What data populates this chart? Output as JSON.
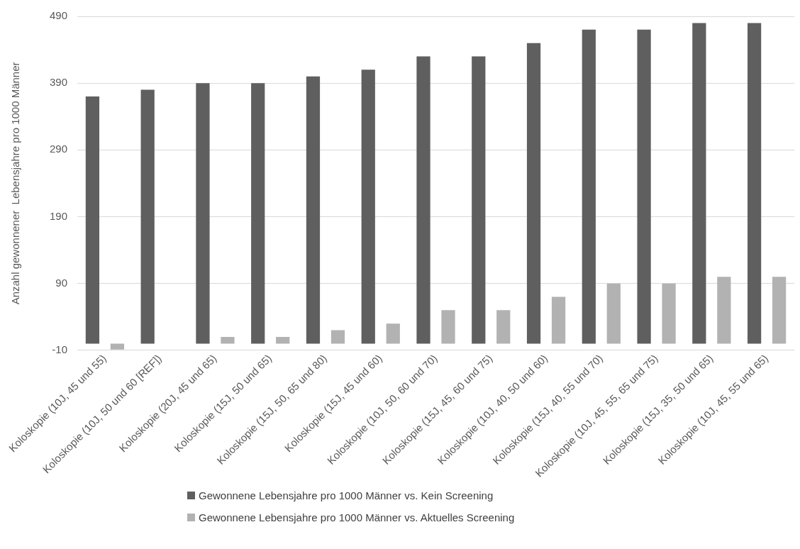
{
  "chart_data": {
    "type": "bar",
    "ylabel": "Anzahl gewonnener  Lebensjahre pro 1000 Männer",
    "categories": [
      "Koloskopie (10J, 45 und 55)",
      "Koloskopie (10J, 50 und 60 [REF])",
      "Koloskopie (20J, 45 und 65)",
      "Koloskopie (15J, 50 und 65)",
      "Koloskopie (15J, 50, 65 und 80)",
      "Koloskopie (15J, 45 und 60)",
      "Koloskopie (10J, 50, 60 und 70)",
      "Koloskopie (15J, 45, 60 und 75)",
      "Koloskopie (10J, 40, 50 und 60)",
      "Koloskopie (15J, 40, 55 und 70)",
      "Koloskopie (10J, 45, 55, 65 und 75)",
      "Koloskopie (15J, 35, 50 und 65)",
      "Koloskopie (10J, 45, 55 und 65)"
    ],
    "series": [
      {
        "name": "Gewonnene Lebensjahre pro 1000 Männer vs. Kein Screening",
        "color": "#5f5f5f",
        "values": [
          370,
          380,
          390,
          390,
          400,
          410,
          430,
          430,
          450,
          470,
          470,
          480,
          480
        ]
      },
      {
        "name": "Gewonnene Lebensjahre pro 1000 Männer vs. Aktuelles Screening",
        "color": "#b2b2b2",
        "values": [
          -9,
          0,
          10,
          10,
          20,
          30,
          50,
          50,
          70,
          90,
          90,
          100,
          100
        ]
      }
    ],
    "ylim": [
      -10,
      490
    ],
    "yticks": [
      -10,
      90,
      190,
      290,
      390,
      490
    ],
    "grid": "y",
    "legend": "bottom"
  }
}
